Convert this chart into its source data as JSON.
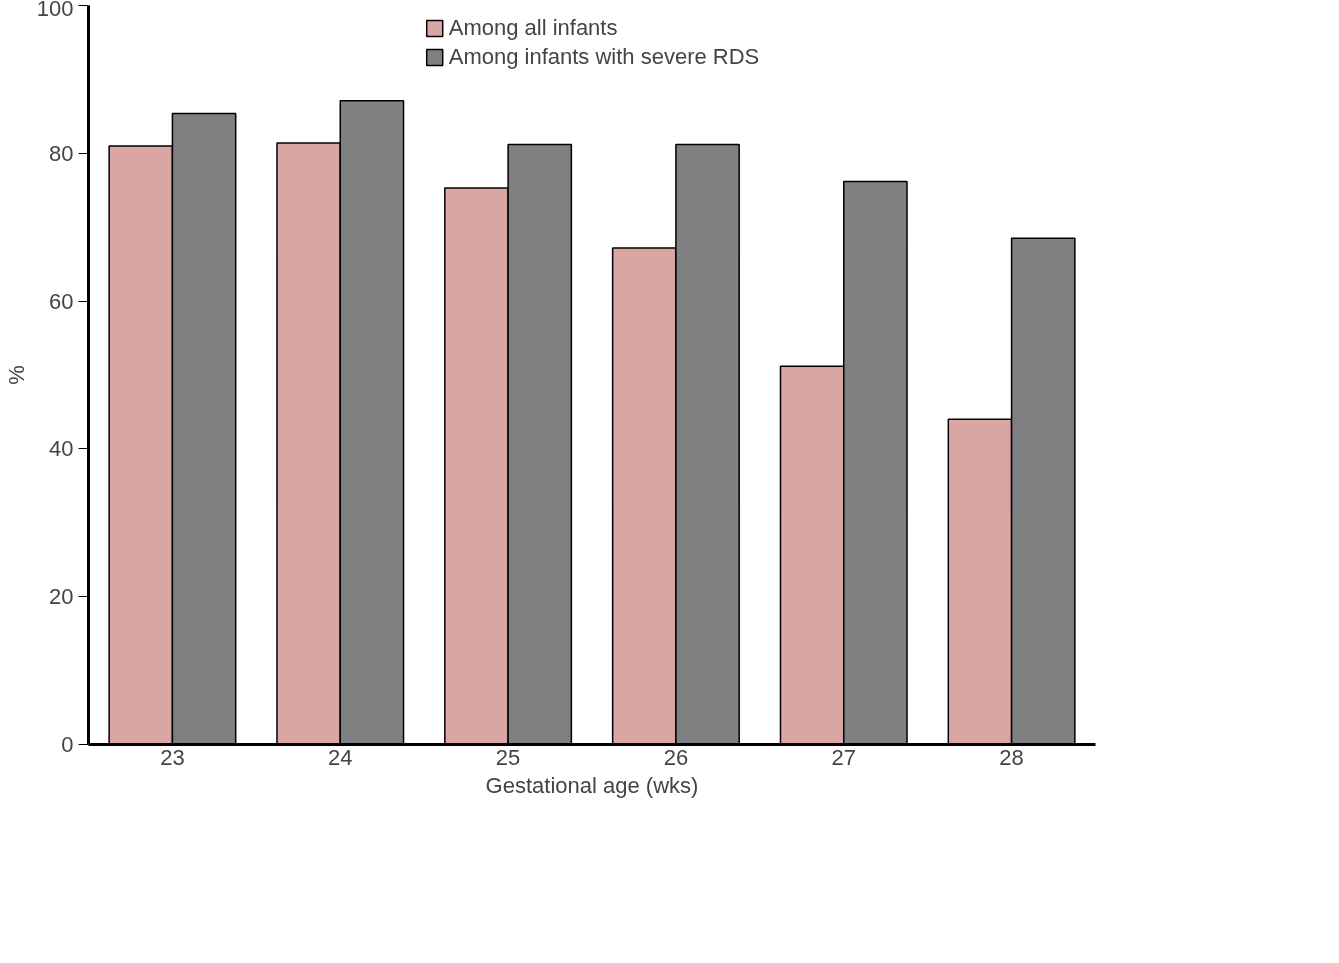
{
  "chart_data": {
    "type": "bar",
    "xlabel": "Gestational age (wks)",
    "ylabel": "%",
    "categories": [
      "23",
      "24",
      "25",
      "26",
      "27",
      "28"
    ],
    "series": [
      {
        "name": "Among all infants",
        "color": "#d9a6a4",
        "values": [
          81,
          81.4,
          75.3,
          67.2,
          51.2,
          44
        ]
      },
      {
        "name": "Among infants with severe RDS",
        "color": "#808083",
        "values": [
          85.4,
          87.1,
          81.2,
          81.2,
          76.2,
          68.5
        ]
      }
    ],
    "ylim": [
      0,
      100
    ],
    "yticks": [
      0,
      20,
      40,
      60,
      80,
      100
    ],
    "grid": false,
    "legend": "top"
  }
}
